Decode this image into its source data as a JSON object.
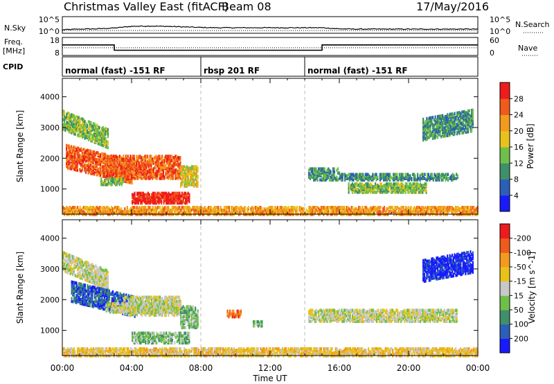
{
  "header": {
    "title": "Christmas Valley East (fitACF)",
    "beam": "Beam 08",
    "date": "17/May/2016"
  },
  "chart_data": [
    {
      "type": "line",
      "name_label": "N.Sky",
      "right_label": "N.Search",
      "left_ticks": [
        "10^5",
        "10^0"
      ],
      "right_ticks": [
        "10^5",
        "10^0"
      ],
      "x_hours": [
        0,
        1,
        2,
        3,
        4,
        5,
        6,
        7,
        8,
        9,
        10,
        11,
        12,
        13,
        14,
        15,
        16,
        17,
        18,
        19,
        20,
        21,
        22,
        23,
        24
      ],
      "nsky_level": [
        0.15,
        0.2,
        0.22,
        0.28,
        0.4,
        0.42,
        0.4,
        0.36,
        0.32,
        0.3,
        0.3,
        0.3,
        0.3,
        0.3,
        0.3,
        0.3,
        0.22,
        0.2,
        0.2,
        0.2,
        0.2,
        0.2,
        0.2,
        0.2,
        0.2
      ],
      "nsearch_level": 0.1
    },
    {
      "type": "line",
      "freq_label": "Freq.",
      "freq_unit": "[MHz]",
      "right_label": "Nave",
      "left_ticks": [
        "18",
        "8"
      ],
      "right_ticks": [
        "60",
        "0"
      ],
      "freq_steps": [
        {
          "start": 0,
          "end": 3,
          "mhz": 14
        },
        {
          "start": 3,
          "end": 15,
          "mhz": 10.5
        },
        {
          "start": 15,
          "end": 24,
          "mhz": 14
        }
      ],
      "nave_level": 25
    },
    {
      "type": "table",
      "label": "CPID",
      "segments": [
        {
          "start": 0,
          "end": 8,
          "text": "normal (fast) -151 RF"
        },
        {
          "start": 8,
          "end": 14,
          "text": "rbsp 201 RF"
        },
        {
          "start": 14,
          "end": 24,
          "text": "normal (fast) -151 RF"
        }
      ]
    },
    {
      "type": "heatmap",
      "quantity": "power",
      "ylabel": "Slant Range [km]",
      "yticks": [
        1000,
        2000,
        3000,
        4000
      ],
      "ylim": [
        180,
        4600
      ],
      "colorbar_label": "Power [dB]",
      "colorbar_ticks": [
        "4",
        "8",
        "12",
        "16",
        "20",
        "24",
        "28"
      ],
      "colorbar_colors": [
        "#1a1aff",
        "#2b5fb8",
        "#3f8f6a",
        "#6fc04a",
        "#e8c21a",
        "#f39a20",
        "#f05a1c",
        "#ee1c1c"
      ],
      "regions": [
        {
          "t0": 0.0,
          "t1": 2.6,
          "r0": 2950,
          "r1": 3550,
          "slope": -600,
          "c": 3
        },
        {
          "t0": 0.2,
          "t1": 4.0,
          "r0": 1700,
          "r1": 2450,
          "slope": -500,
          "c": 6
        },
        {
          "t0": 2.5,
          "t1": 6.8,
          "r0": 1350,
          "r1": 2100,
          "slope": 0,
          "c": 6
        },
        {
          "t0": 4.0,
          "t1": 7.3,
          "r0": 550,
          "r1": 900,
          "slope": 0,
          "c": 7
        },
        {
          "t0": 6.8,
          "t1": 7.8,
          "r0": 1100,
          "r1": 1750,
          "slope": 0,
          "c": 4
        },
        {
          "t0": 2.2,
          "t1": 3.5,
          "r0": 1150,
          "r1": 1350,
          "slope": 0,
          "c": 3
        },
        {
          "t0": 14.2,
          "t1": 16.0,
          "r0": 1300,
          "r1": 1700,
          "slope": 0,
          "c": 2
        },
        {
          "t0": 16.0,
          "t1": 22.8,
          "r0": 1300,
          "r1": 1500,
          "slope": 0,
          "c": 2
        },
        {
          "t0": 16.5,
          "t1": 21.0,
          "r0": 900,
          "r1": 1200,
          "slope": 0,
          "c": 3
        },
        {
          "t0": 20.8,
          "t1": 23.7,
          "r0": 2600,
          "r1": 3300,
          "slope": 300,
          "c": 2
        },
        {
          "t0": 0.0,
          "t1": 24.0,
          "r0": 180,
          "r1": 420,
          "slope": 0,
          "c": 5
        }
      ]
    },
    {
      "type": "heatmap",
      "quantity": "velocity",
      "ylabel": "Slant Range [km]",
      "yticks": [
        1000,
        2000,
        3000,
        4000
      ],
      "ylim": [
        180,
        4600
      ],
      "xlabel": "Time UT",
      "xticks": [
        "00:00",
        "04:00",
        "08:00",
        "12:00",
        "16:00",
        "20:00",
        "00:00"
      ],
      "colorbar_label": "Velocity [m s^-1]",
      "colorbar_ticks": [
        "200",
        "100",
        "50",
        "15",
        "-15",
        "-50",
        "-100",
        "-200"
      ],
      "colorbar_colors": [
        "#1a1aff",
        "#2b5fb8",
        "#3f8f6a",
        "#6fc04a",
        "#c8c8c8",
        "#e8c21a",
        "#f39a20",
        "#f05a1c",
        "#ee1c1c"
      ],
      "regions": [
        {
          "t0": 0.0,
          "t1": 2.6,
          "r0": 2950,
          "r1": 3550,
          "slope": -600,
          "c": 4
        },
        {
          "t0": 0.5,
          "t1": 4.2,
          "r0": 1950,
          "r1": 2600,
          "slope": -500,
          "c": 1
        },
        {
          "t0": 3.5,
          "t1": 6.8,
          "r0": 1500,
          "r1": 2100,
          "slope": 0,
          "c": 4
        },
        {
          "t0": 2.5,
          "t1": 6.5,
          "r0": 1600,
          "r1": 1900,
          "slope": 0,
          "c": 4
        },
        {
          "t0": 4.0,
          "t1": 7.3,
          "r0": 600,
          "r1": 950,
          "slope": 0,
          "c": 3
        },
        {
          "t0": 6.8,
          "t1": 7.8,
          "r0": 1100,
          "r1": 1800,
          "slope": 0,
          "c": 3
        },
        {
          "t0": 9.5,
          "t1": 10.3,
          "r0": 1450,
          "r1": 1650,
          "slope": 0,
          "c": 7
        },
        {
          "t0": 11.0,
          "t1": 11.5,
          "r0": 1150,
          "r1": 1300,
          "slope": 0,
          "c": 3
        },
        {
          "t0": 14.2,
          "t1": 22.8,
          "r0": 1300,
          "r1": 1700,
          "slope": 0,
          "c": 4
        },
        {
          "t0": 20.8,
          "t1": 23.7,
          "r0": 2600,
          "r1": 3300,
          "slope": 300,
          "c": 0
        },
        {
          "t0": 0.0,
          "t1": 24.0,
          "r0": 180,
          "r1": 420,
          "slope": 0,
          "c": 5
        }
      ]
    }
  ]
}
